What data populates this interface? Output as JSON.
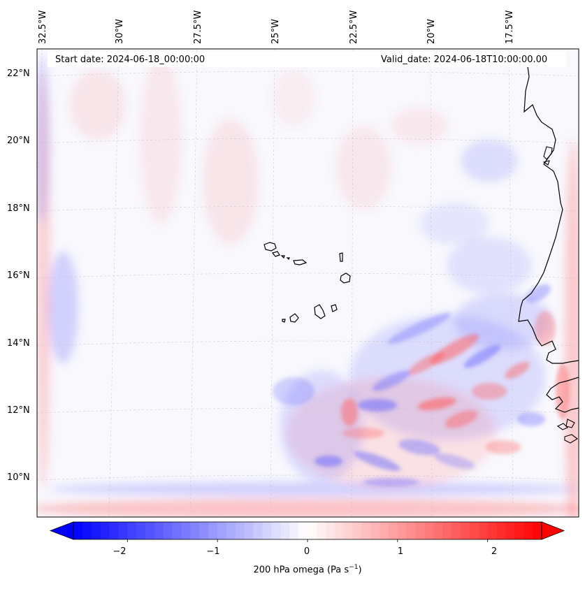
{
  "map": {
    "start_date": "Start date: 2024-06-18_00:00:00",
    "valid_date": "Valid_date: 2024-06-18T10:00:00.00",
    "lon_labels": [
      "32.5°W",
      "30°W",
      "27.5°W",
      "25°W",
      "22.5°W",
      "20°W",
      "17.5°W"
    ],
    "lat_labels": [
      "22°N",
      "20°N",
      "18°N",
      "16°N",
      "14°N",
      "12°N",
      "10°N"
    ],
    "field": "200 hPa omega",
    "projection": "Lambert conformal",
    "features": [
      "coastline-west-africa",
      "cape-verde-islands"
    ]
  },
  "colorbar": {
    "label": "200 hPa omega (Pa s",
    "label_sup": "−1",
    "label_end": ")",
    "ticks": [
      "−2",
      "−1",
      "0",
      "1",
      "2"
    ],
    "min": -2.6,
    "max": 2.6,
    "extend": "both",
    "colormap": "bwr",
    "colors": {
      "low": "#0000ff",
      "mid": "#ffffff",
      "high": "#ff0000"
    }
  }
}
